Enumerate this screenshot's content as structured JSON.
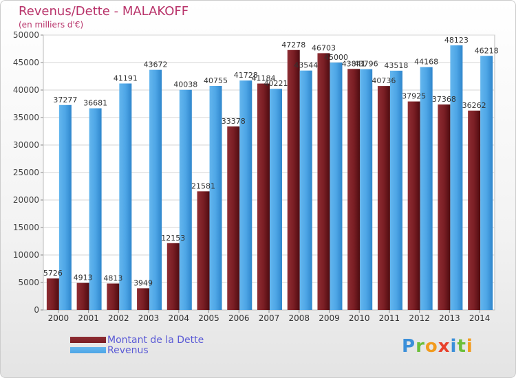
{
  "chart_data": {
    "type": "bar",
    "title": "Revenus/Dette - MALAKOFF",
    "subtitle": "(en milliers d'€)",
    "categories": [
      "2000",
      "2001",
      "2002",
      "2003",
      "2004",
      "2005",
      "2006",
      "2007",
      "2008",
      "2009",
      "2010",
      "2011",
      "2012",
      "2013",
      "2014"
    ],
    "series": [
      {
        "name": "Montant de la Dette",
        "color": "#7a1e24",
        "values": [
          5726,
          4913,
          4813,
          3949,
          12153,
          21581,
          33378,
          41184,
          47278,
          46703,
          43841,
          40736,
          37925,
          37368,
          36262
        ],
        "labels": [
          "5726",
          "4913",
          "4813",
          "3949",
          "12153",
          "21581",
          "33378",
          "41184",
          "47278",
          "46703",
          "43841",
          "40736",
          "37925",
          "37368",
          "36262"
        ]
      },
      {
        "name": "Revenus",
        "color": "#4ea6e6",
        "values": [
          37277,
          36681,
          41191,
          43672,
          40038,
          40755,
          41728,
          40221,
          43544,
          45000,
          43796,
          43518,
          44168,
          48123,
          46218
        ],
        "labels": [
          "37277",
          "36681",
          "41191",
          "43672",
          "40038",
          "40755",
          "41728",
          "40221",
          "43544",
          "45000",
          "43796",
          "43518",
          "44168",
          "48123",
          "46218"
        ]
      }
    ],
    "ylim": [
      0,
      50000
    ],
    "yticks": [
      "0",
      "5000",
      "10000",
      "15000",
      "20000",
      "25000",
      "30000",
      "35000",
      "40000",
      "45000",
      "50000"
    ],
    "grid": true,
    "legend_position": "bottom-left"
  },
  "logo": {
    "letters": [
      "P",
      "r",
      "o",
      "x",
      "i",
      "t",
      "i"
    ],
    "colors": [
      "#3b8fd9",
      "#6cbf3a",
      "#f29b1d",
      "#e8412c",
      "#3b8fd9",
      "#6cbf3a",
      "#f29b1d"
    ]
  }
}
